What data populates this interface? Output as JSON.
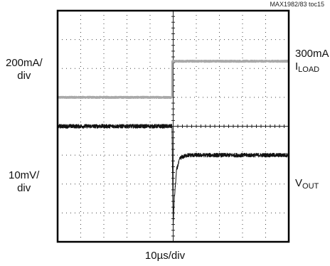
{
  "figure_id": "MAX1982/83 toc15",
  "chart_data": {
    "type": "line",
    "title": "",
    "xlabel": "10µs/div",
    "x_divisions": 10,
    "y_divisions": 8,
    "grid": true,
    "load_scale": "200mA/div",
    "vout_scale": "10mV/div",
    "load_scale_lines": [
      "200mA/",
      "div"
    ],
    "vout_scale_lines": [
      "10mV/",
      "div"
    ],
    "annotations": {
      "load_level": "300mA",
      "load_name": "I",
      "load_sub": "LOAD",
      "vout_name": "V",
      "vout_sub": "OUT"
    },
    "series": [
      {
        "name": "ILOAD",
        "color": "#a9a9a9",
        "x_div": [
          0,
          4.95,
          4.95,
          10
        ],
        "y_div": [
          5.0,
          5.0,
          6.25,
          6.25
        ]
      },
      {
        "name": "VOUT",
        "color": "#111111",
        "x_div": [
          0,
          4.95,
          5.0,
          5.05,
          5.15,
          5.3,
          5.6,
          10
        ],
        "y_div": [
          4.0,
          4.0,
          0.6,
          1.5,
          2.5,
          2.9,
          3.0,
          3.0
        ]
      }
    ]
  }
}
